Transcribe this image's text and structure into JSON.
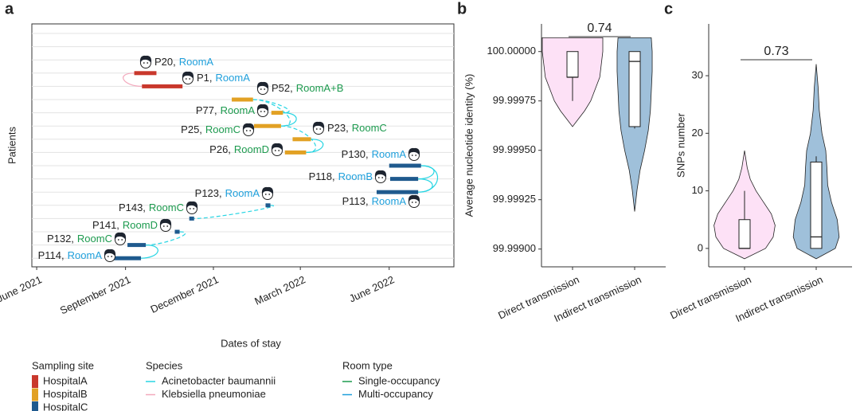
{
  "chart_data": [
    {
      "type": "timeline",
      "panel": "a",
      "xlabel": "Dates of stay",
      "ylabel": "Patients",
      "xlim": [
        "2021-05-27",
        "2022-08-07"
      ],
      "xticks": [
        {
          "value": "2021-06-01",
          "label": "June 2021"
        },
        {
          "value": "2021-09-01",
          "label": "September 2021"
        },
        {
          "value": "2021-12-01",
          "label": "December 2021"
        },
        {
          "value": "2022-03-01",
          "label": "March 2022"
        },
        {
          "value": "2022-06-01",
          "label": "June 2022"
        }
      ],
      "categories": [
        null,
        null,
        null,
        "P20,",
        "P1,",
        "P52,",
        "P77,",
        "P25,",
        "P23,",
        "P26,",
        "P130,",
        "P118,",
        "P113,",
        "P123,",
        "P143,",
        "P141,",
        "P132,",
        "P114,"
      ],
      "rooms": [
        null,
        null,
        null,
        "RoomA",
        "RoomA",
        "RoomA+B",
        "RoomA",
        "RoomC",
        "RoomC",
        "RoomD",
        "RoomA",
        "RoomB",
        "RoomA",
        "RoomA",
        "RoomC",
        "RoomD",
        "RoomC",
        "RoomA"
      ],
      "room_types": [
        null,
        null,
        null,
        "Multi-occupancy",
        "Multi-occupancy",
        "Single-occupancy",
        "Single-occupancy",
        "Single-occupancy",
        "Single-occupancy",
        "Single-occupancy",
        "Multi-occupancy",
        "Multi-occupancy",
        "Multi-occupancy",
        "Multi-occupancy",
        "Single-occupancy",
        "Single-occupancy",
        "Single-occupancy",
        "Multi-occupancy"
      ],
      "sites": [
        null,
        null,
        null,
        "HospitalA",
        "HospitalA",
        "HospitalB",
        "HospitalB",
        "HospitalB",
        "HospitalB",
        "HospitalB",
        "HospitalC",
        "HospitalC",
        "HospitalC",
        "HospitalC",
        "HospitalC",
        "HospitalC",
        "HospitalC",
        "HospitalC"
      ],
      "start": [
        null,
        null,
        null,
        "2021-09-10",
        "2021-09-18",
        "2021-12-20",
        "2022-01-30",
        "2022-01-12",
        "2022-02-21",
        "2022-02-13",
        "2022-06-01",
        "2022-06-02",
        "2022-05-19",
        "2022-01-24",
        "2021-11-06",
        "2021-10-22",
        "2021-09-03",
        "2021-08-15"
      ],
      "end": [
        null,
        null,
        null,
        "2021-10-03",
        "2021-10-30",
        "2022-01-11",
        "2022-02-11",
        "2022-02-09",
        "2022-03-12",
        "2022-03-07",
        "2022-07-04",
        "2022-07-01",
        "2022-07-01",
        "2022-01-29",
        "2021-11-11",
        "2021-10-27",
        "2021-09-22",
        "2021-09-17"
      ],
      "links": [
        {
          "from": 3,
          "to": 4,
          "species": "Klebsiella pneumoniae",
          "dashed": false
        },
        {
          "from": 5,
          "to": 6,
          "species": "Acinetobacter baumannii",
          "dashed": true
        },
        {
          "from": 6,
          "to": 7,
          "species": "Acinetobacter baumannii",
          "dashed": false
        },
        {
          "from": 5,
          "to": 7,
          "species": "Acinetobacter baumannii",
          "dashed": true
        },
        {
          "from": 8,
          "to": 9,
          "species": "Acinetobacter baumannii",
          "dashed": false
        },
        {
          "from": 7,
          "to": 9,
          "species": "Acinetobacter baumannii",
          "dashed": true
        },
        {
          "from": 10,
          "to": 11,
          "species": "Acinetobacter baumannii",
          "dashed": false
        },
        {
          "from": 11,
          "to": 12,
          "species": "Acinetobacter baumannii",
          "dashed": false
        },
        {
          "from": 10,
          "to": 12,
          "species": "Acinetobacter baumannii",
          "dashed": false
        },
        {
          "from": 13,
          "to": 14,
          "species": "Acinetobacter baumannii",
          "dashed": true
        },
        {
          "from": 15,
          "to": 16,
          "species": "Acinetobacter baumannii",
          "dashed": true
        },
        {
          "from": 16,
          "to": 17,
          "species": "Acinetobacter baumannii",
          "dashed": false
        }
      ],
      "legends": [
        {
          "title": "Sampling site",
          "kind": "swatch",
          "items": [
            {
              "name": "HospitalA",
              "color": "#c9382c"
            },
            {
              "name": "HospitalB",
              "color": "#e2a124"
            },
            {
              "name": "HospitalC",
              "color": "#1f5a8e"
            }
          ]
        },
        {
          "title": "Species",
          "kind": "line",
          "items": [
            {
              "name": "Acinetobacter baumannii",
              "color": "#27d5e3"
            },
            {
              "name": "Klebsiella pneumoniae",
              "color": "#f3a9bd"
            }
          ]
        },
        {
          "title": "Room type",
          "kind": "line",
          "items": [
            {
              "name": "Single-occupancy",
              "color": "#1c9a4e"
            },
            {
              "name": "Multi-occupancy",
              "color": "#1e9fdb"
            }
          ]
        }
      ]
    },
    {
      "type": "violin",
      "panel": "b",
      "ylabel": "Average nucleotide identity (%)",
      "ylim": [
        99.99891,
        100.00014
      ],
      "yticks": [
        {
          "value": 99.999,
          "label": "99.99900"
        },
        {
          "value": 99.99925,
          "label": "99.99925"
        },
        {
          "value": 99.9995,
          "label": "99.99950"
        },
        {
          "value": 99.99975,
          "label": "99.99975"
        },
        {
          "value": 100.0,
          "label": "100.00000"
        }
      ],
      "categories": [
        "Direct transmission",
        "Indirect transmission"
      ],
      "colors": [
        "#fde1f6",
        "#9fc0da"
      ],
      "violins": [
        {
          "y": [
            100.00007,
            100.0,
            99.99987,
            99.99975,
            99.9997,
            99.99965,
            99.99962
          ],
          "density": [
            1.0,
            1.0,
            0.9,
            0.6,
            0.4,
            0.15,
            0
          ]
        },
        {
          "y": [
            100.00007,
            100.0,
            99.9999,
            99.9998,
            99.9997,
            99.9996,
            99.9995,
            99.9994,
            99.9993,
            99.99919
          ],
          "density": [
            0.55,
            0.58,
            0.58,
            0.55,
            0.52,
            0.45,
            0.33,
            0.18,
            0.08,
            0
          ]
        }
      ],
      "boxes": [
        {
          "min": 99.99975,
          "q1": 99.99987,
          "median": 99.99987,
          "q3": 100.0,
          "max": 100.0
        },
        {
          "min": 99.99961,
          "q1": 99.99962,
          "median": 99.99995,
          "q3": 100.0,
          "max": 100.0
        }
      ],
      "bracket_label": "0.74"
    },
    {
      "type": "violin",
      "panel": "c",
      "ylabel": "SNPs number",
      "ylim": [
        -3.2,
        39
      ],
      "yticks": [
        0,
        10,
        20,
        30
      ],
      "categories": [
        "Direct transmission",
        "Indirect transmission"
      ],
      "colors": [
        "#fde1f6",
        "#9fc0da"
      ],
      "violins": [
        {
          "y": [
            -1.8,
            0,
            2,
            4,
            6,
            8,
            10,
            12,
            14,
            17
          ],
          "density": [
            0,
            0.55,
            0.75,
            0.8,
            0.7,
            0.5,
            0.3,
            0.15,
            0.07,
            0
          ]
        },
        {
          "y": [
            -1.8,
            0,
            2,
            5,
            8,
            11,
            14,
            17,
            20,
            24,
            28,
            32
          ],
          "density": [
            0,
            0.5,
            0.6,
            0.55,
            0.4,
            0.3,
            0.28,
            0.25,
            0.15,
            0.08,
            0.05,
            0
          ]
        }
      ],
      "boxes": [
        {
          "min": 0,
          "q1": 0,
          "median": 0,
          "q3": 5,
          "max": 10
        },
        {
          "min": 0,
          "q1": 0,
          "median": 2,
          "q3": 15,
          "max": 16
        }
      ],
      "bracket_label": "0.73"
    }
  ]
}
